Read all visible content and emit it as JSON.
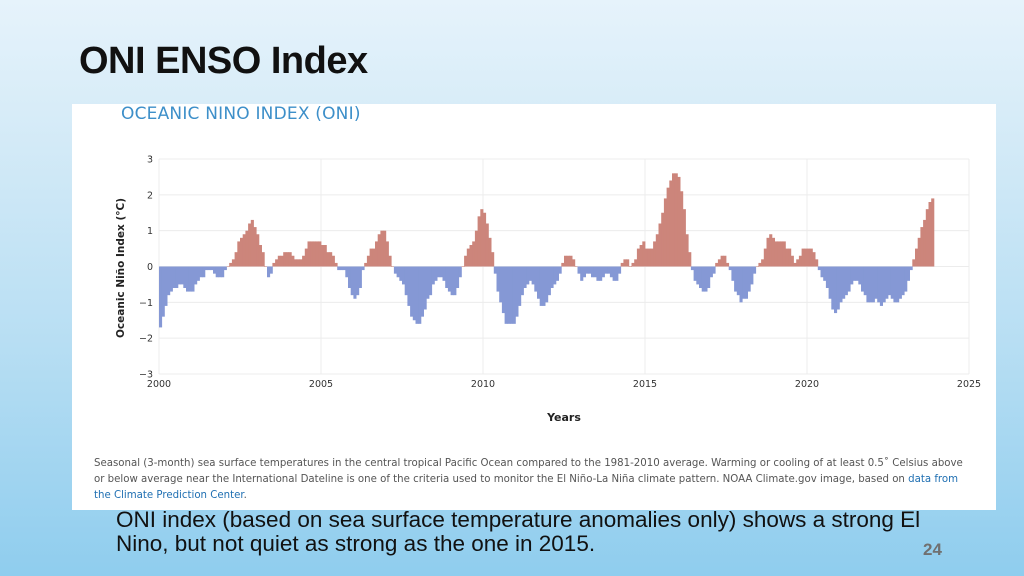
{
  "slide": {
    "title": "ONI ENSO Index",
    "body_text": "ONI index (based on sea surface temperature anomalies only) shows a strong El Nino, but not  quiet as strong as the one in 2015.",
    "page_number": "24"
  },
  "figure": {
    "caption_text": "Seasonal (3-month) sea surface temperatures in the central tropical Pacific Ocean compared to the 1981-2010 average. Warming or cooling of at least 0.5˚ Celsius above or below average near the International Dateline is one of the criteria used to monitor the El Niño-La Niña climate pattern. NOAA Climate.gov image, based on ",
    "caption_link": "data from the Climate Prediction Center",
    "caption_end": "."
  },
  "colors": {
    "positive": "#cc857b",
    "negative": "#8598d5",
    "title_blue": "#3d8fc9",
    "grid": "#ececec"
  },
  "chart_data": {
    "type": "bar",
    "title": "OCEANIC NINO INDEX (ONI)",
    "xlabel": "Years",
    "ylabel": "Oceanic Niño Index (°C)",
    "xlim": [
      2000,
      2025
    ],
    "ylim": [
      -3,
      3
    ],
    "xticks": [
      "2000",
      "2005",
      "2010",
      "2015",
      "2020",
      "2025"
    ],
    "yticks": [
      "3",
      "2",
      "1",
      "0",
      "−1",
      "−2",
      "−3"
    ],
    "grid": true,
    "legend": "none",
    "start": "2000-01",
    "interval": "monthly (3-month running mean)",
    "values": [
      -1.7,
      -1.4,
      -1.1,
      -0.8,
      -0.7,
      -0.6,
      -0.6,
      -0.5,
      -0.5,
      -0.6,
      -0.7,
      -0.7,
      -0.7,
      -0.5,
      -0.4,
      -0.3,
      -0.3,
      -0.1,
      -0.1,
      -0.1,
      -0.2,
      -0.3,
      -0.3,
      -0.3,
      -0.1,
      0.0,
      0.1,
      0.2,
      0.4,
      0.7,
      0.8,
      0.9,
      1.0,
      1.2,
      1.3,
      1.1,
      0.9,
      0.6,
      0.4,
      0.0,
      -0.3,
      -0.2,
      0.1,
      0.2,
      0.3,
      0.3,
      0.4,
      0.4,
      0.4,
      0.3,
      0.2,
      0.2,
      0.2,
      0.3,
      0.5,
      0.7,
      0.7,
      0.7,
      0.7,
      0.7,
      0.6,
      0.6,
      0.4,
      0.4,
      0.3,
      0.1,
      -0.1,
      -0.1,
      -0.1,
      -0.3,
      -0.6,
      -0.8,
      -0.9,
      -0.8,
      -0.6,
      -0.1,
      0.1,
      0.3,
      0.5,
      0.5,
      0.7,
      0.9,
      1.0,
      1.0,
      0.7,
      0.3,
      0.0,
      -0.2,
      -0.3,
      -0.4,
      -0.5,
      -0.8,
      -1.1,
      -1.4,
      -1.5,
      -1.6,
      -1.6,
      -1.4,
      -1.2,
      -0.9,
      -0.8,
      -0.5,
      -0.4,
      -0.3,
      -0.3,
      -0.4,
      -0.6,
      -0.7,
      -0.8,
      -0.8,
      -0.6,
      -0.3,
      0.0,
      0.3,
      0.5,
      0.6,
      0.7,
      1.0,
      1.4,
      1.6,
      1.5,
      1.2,
      0.8,
      0.4,
      -0.2,
      -0.7,
      -1.0,
      -1.3,
      -1.6,
      -1.6,
      -1.6,
      -1.6,
      -1.4,
      -1.1,
      -0.8,
      -0.6,
      -0.5,
      -0.4,
      -0.5,
      -0.7,
      -0.9,
      -1.1,
      -1.1,
      -1.0,
      -0.8,
      -0.6,
      -0.5,
      -0.4,
      -0.2,
      0.1,
      0.3,
      0.3,
      0.3,
      0.2,
      0.0,
      -0.2,
      -0.4,
      -0.3,
      -0.2,
      -0.2,
      -0.3,
      -0.3,
      -0.4,
      -0.4,
      -0.3,
      -0.2,
      -0.2,
      -0.3,
      -0.4,
      -0.4,
      -0.2,
      0.1,
      0.2,
      0.2,
      0.0,
      0.1,
      0.2,
      0.5,
      0.6,
      0.7,
      0.5,
      0.5,
      0.5,
      0.7,
      0.9,
      1.2,
      1.5,
      1.9,
      2.2,
      2.4,
      2.6,
      2.6,
      2.5,
      2.1,
      1.6,
      0.9,
      0.4,
      -0.1,
      -0.4,
      -0.5,
      -0.6,
      -0.7,
      -0.7,
      -0.6,
      -0.3,
      -0.2,
      0.1,
      0.2,
      0.3,
      0.3,
      0.1,
      -0.1,
      -0.4,
      -0.7,
      -0.8,
      -1.0,
      -0.9,
      -0.9,
      -0.7,
      -0.5,
      -0.2,
      0.0,
      0.1,
      0.2,
      0.5,
      0.8,
      0.9,
      0.8,
      0.7,
      0.7,
      0.7,
      0.7,
      0.5,
      0.5,
      0.3,
      0.1,
      0.2,
      0.3,
      0.5,
      0.5,
      0.5,
      0.5,
      0.4,
      0.2,
      -0.1,
      -0.3,
      -0.4,
      -0.6,
      -0.9,
      -1.2,
      -1.3,
      -1.2,
      -1.0,
      -0.9,
      -0.8,
      -0.7,
      -0.5,
      -0.4,
      -0.4,
      -0.5,
      -0.7,
      -0.8,
      -1.0,
      -1.0,
      -1.0,
      -0.9,
      -1.0,
      -1.1,
      -1.0,
      -0.9,
      -0.8,
      -0.9,
      -1.0,
      -1.0,
      -0.9,
      -0.8,
      -0.7,
      -0.4,
      -0.1,
      0.2,
      0.5,
      0.8,
      1.1,
      1.3,
      1.6,
      1.8,
      1.9
    ]
  }
}
